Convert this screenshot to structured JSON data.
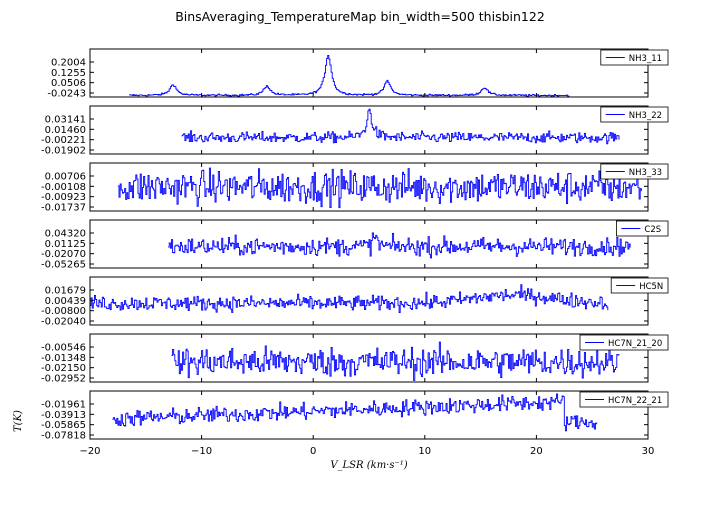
{
  "figure": {
    "title": "BinsAveraging_TemperatureMap bin_width=500 thisbin122",
    "xlabel": "V_LSR (km·s⁻¹)",
    "ylabel": "T(K)"
  },
  "chart_data": {
    "type": "line",
    "xlim": [
      -20,
      30
    ],
    "x_ticks": [
      -20,
      -10,
      0,
      10,
      20,
      30
    ],
    "grid": false,
    "legend_placement": "top-right",
    "line_color": "#0000ff",
    "panels": [
      {
        "name": "NH3_11",
        "yticks": [
          "0.2004",
          "0.1255",
          "0.0506",
          "-0.0243"
        ],
        "ylim": [
          -0.045,
          0.26
        ],
        "xrange": [
          -16.5,
          23.0
        ],
        "noise": 0.003,
        "baseline": -0.035,
        "peaks": [
          {
            "x": 1.3,
            "h": 0.255,
            "w": 0.35
          },
          {
            "x": -12.6,
            "h": 0.07,
            "w": 0.35
          },
          {
            "x": -4.2,
            "h": 0.06,
            "w": 0.35
          },
          {
            "x": 6.6,
            "h": 0.09,
            "w": 0.35
          },
          {
            "x": 15.3,
            "h": 0.05,
            "w": 0.35
          }
        ]
      },
      {
        "name": "NH3_22",
        "yticks": [
          "0.03141",
          "0.01460",
          "-0.00221",
          "-0.01902"
        ],
        "ylim": [
          -0.022,
          0.041
        ],
        "xrange": [
          -11.8,
          27.5
        ],
        "noise": 0.0035,
        "baseline": -0.0005,
        "peaks": [
          {
            "x": 5.0,
            "h": 0.035,
            "w": 0.3
          }
        ]
      },
      {
        "name": "NH3_33",
        "yticks": [
          "0.00706",
          "-0.00108",
          "-0.00923",
          "-0.01737"
        ],
        "ylim": [
          -0.0205,
          0.0115
        ],
        "xrange": [
          -17.5,
          29.5
        ],
        "noise": 0.0055,
        "baseline": -0.0045,
        "peaks": []
      },
      {
        "name": "C2S",
        "yticks": [
          "0.04320",
          "0.01125",
          "-0.02070",
          "-0.05265"
        ],
        "ylim": [
          -0.065,
          0.065
        ],
        "xrange": [
          -13.0,
          28.5
        ],
        "noise": 0.012,
        "baseline": -0.007,
        "peaks": [
          {
            "x": 5.5,
            "h": 0.03,
            "w": 0.2
          }
        ]
      },
      {
        "name": "HC5N",
        "yticks": [
          "0.01679",
          "0.00439",
          "-0.00800",
          "-0.02040"
        ],
        "ylim": [
          -0.0245,
          0.0275
        ],
        "xrange": [
          -20.0,
          26.5
        ],
        "noise": 0.004,
        "baseline": -0.001,
        "peaks": [],
        "bump": {
          "x": 18,
          "h": 0.009,
          "w": 5
        }
      },
      {
        "name": "HC7N_21_20",
        "yticks": [
          "-0.00546",
          "-0.01348",
          "-0.02150",
          "-0.02952"
        ],
        "ylim": [
          -0.0335,
          0.0025
        ],
        "xrange": [
          -12.7,
          27.5
        ],
        "noise": 0.0055,
        "baseline": -0.0185,
        "peaks": []
      },
      {
        "name": "HC7N_22_21",
        "yticks": [
          "-0.01961",
          "-0.03913",
          "-0.05865",
          "-0.07818"
        ],
        "ylim": [
          -0.082,
          -0.005
        ],
        "xrange": [
          -18.0,
          25.5
        ],
        "noise": 0.0065,
        "baseline": -0.048,
        "peaks": [],
        "trend": {
          "from": -0.05,
          "to": -0.022,
          "drop_at": 22.5
        }
      }
    ]
  }
}
